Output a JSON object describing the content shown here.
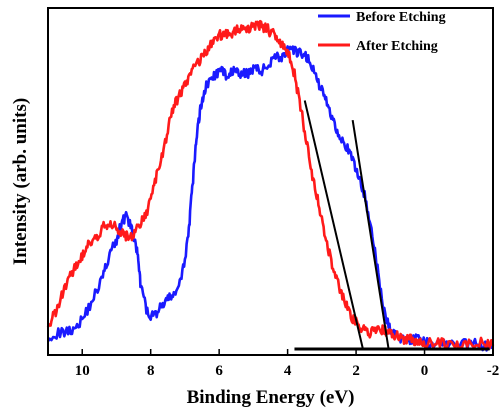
{
  "chart_data": {
    "type": "line",
    "xlabel": "Binding Energy (eV)",
    "ylabel": "Intensity (arb. units)",
    "x_axis_reversed": true,
    "xlim": [
      11.0,
      -2.0
    ],
    "ylim": [
      0,
      100
    ],
    "x_ticks": [
      10,
      8,
      6,
      4,
      2,
      0,
      -2
    ],
    "x_tick_labels": [
      "10",
      "8",
      "6",
      "4",
      "2",
      "0",
      "-2"
    ],
    "y_ticks_shown": false,
    "grid": false,
    "legend_position": "top-right",
    "series": [
      {
        "name": "Before Etching",
        "color": "#1a1aff",
        "x": [
          11.0,
          10.6,
          10.3,
          10.0,
          9.7,
          9.4,
          9.2,
          9.0,
          8.85,
          8.7,
          8.55,
          8.4,
          8.3,
          8.1,
          7.9,
          7.7,
          7.5,
          7.3,
          7.1,
          6.9,
          6.8,
          6.7,
          6.6,
          6.5,
          6.4,
          6.2,
          6.0,
          5.8,
          5.6,
          5.4,
          5.2,
          5.0,
          4.8,
          4.6,
          4.4,
          4.2,
          4.0,
          3.8,
          3.6,
          3.4,
          3.2,
          3.0,
          2.8,
          2.6,
          2.4,
          2.2,
          2.0,
          1.8,
          1.6,
          1.4,
          1.2,
          1.0,
          0.8,
          0.6,
          0.4,
          0.2,
          0.0,
          -0.3,
          -0.6,
          -1.0,
          -1.4,
          -1.7,
          -2.0
        ],
        "values": [
          4,
          5,
          6,
          9,
          15,
          22,
          29,
          33,
          39,
          41,
          36,
          30,
          20,
          11,
          10,
          13,
          15,
          17,
          21,
          35,
          47,
          60,
          70,
          76,
          80,
          83,
          85,
          84,
          85,
          84,
          84,
          86,
          85,
          86,
          90,
          89,
          91,
          91,
          90,
          89,
          84,
          79,
          74,
          68,
          64,
          60,
          55,
          49,
          40,
          26,
          12,
          6,
          4,
          3,
          3,
          3,
          2,
          2,
          2,
          1,
          2,
          1,
          1
        ]
      },
      {
        "name": "After Etching",
        "color": "#ff1a1a",
        "x": [
          11.0,
          10.8,
          10.6,
          10.4,
          10.2,
          10.0,
          9.8,
          9.6,
          9.4,
          9.2,
          9.0,
          8.8,
          8.6,
          8.4,
          8.2,
          8.0,
          7.8,
          7.6,
          7.4,
          7.2,
          7.0,
          6.8,
          6.6,
          6.4,
          6.2,
          6.0,
          5.8,
          5.6,
          5.4,
          5.2,
          5.0,
          4.8,
          4.6,
          4.4,
          4.2,
          4.0,
          3.8,
          3.6,
          3.4,
          3.2,
          3.0,
          2.8,
          2.6,
          2.4,
          2.2,
          2.0,
          1.8,
          1.6,
          1.4,
          1.2,
          1.0,
          0.8,
          0.6,
          0.4,
          0.2,
          0.0,
          -0.4,
          -0.8,
          -1.2,
          -1.6,
          -2.0
        ],
        "values": [
          6,
          11,
          16,
          21,
          25,
          28,
          32,
          34,
          37,
          39,
          37,
          35,
          34,
          37,
          40,
          45,
          54,
          62,
          72,
          77,
          81,
          85,
          88,
          91,
          94,
          96,
          96,
          97,
          98,
          98,
          99,
          99,
          98,
          96,
          93,
          91,
          84,
          73,
          60,
          49,
          40,
          30,
          22,
          16,
          11,
          8,
          6,
          5,
          6,
          6,
          5,
          4,
          3,
          3,
          2,
          2,
          2,
          1,
          2,
          2,
          1
        ]
      }
    ],
    "fit_lines": [
      {
        "color": "#000000",
        "x": [
          3.5,
          1.8
        ],
        "values": [
          76,
          0
        ]
      },
      {
        "color": "#000000",
        "x": [
          2.1,
          1.05
        ],
        "values": [
          70,
          0
        ]
      },
      {
        "color": "#000000",
        "x": [
          3.8,
          -1.9
        ],
        "values": [
          0,
          0
        ]
      }
    ]
  }
}
